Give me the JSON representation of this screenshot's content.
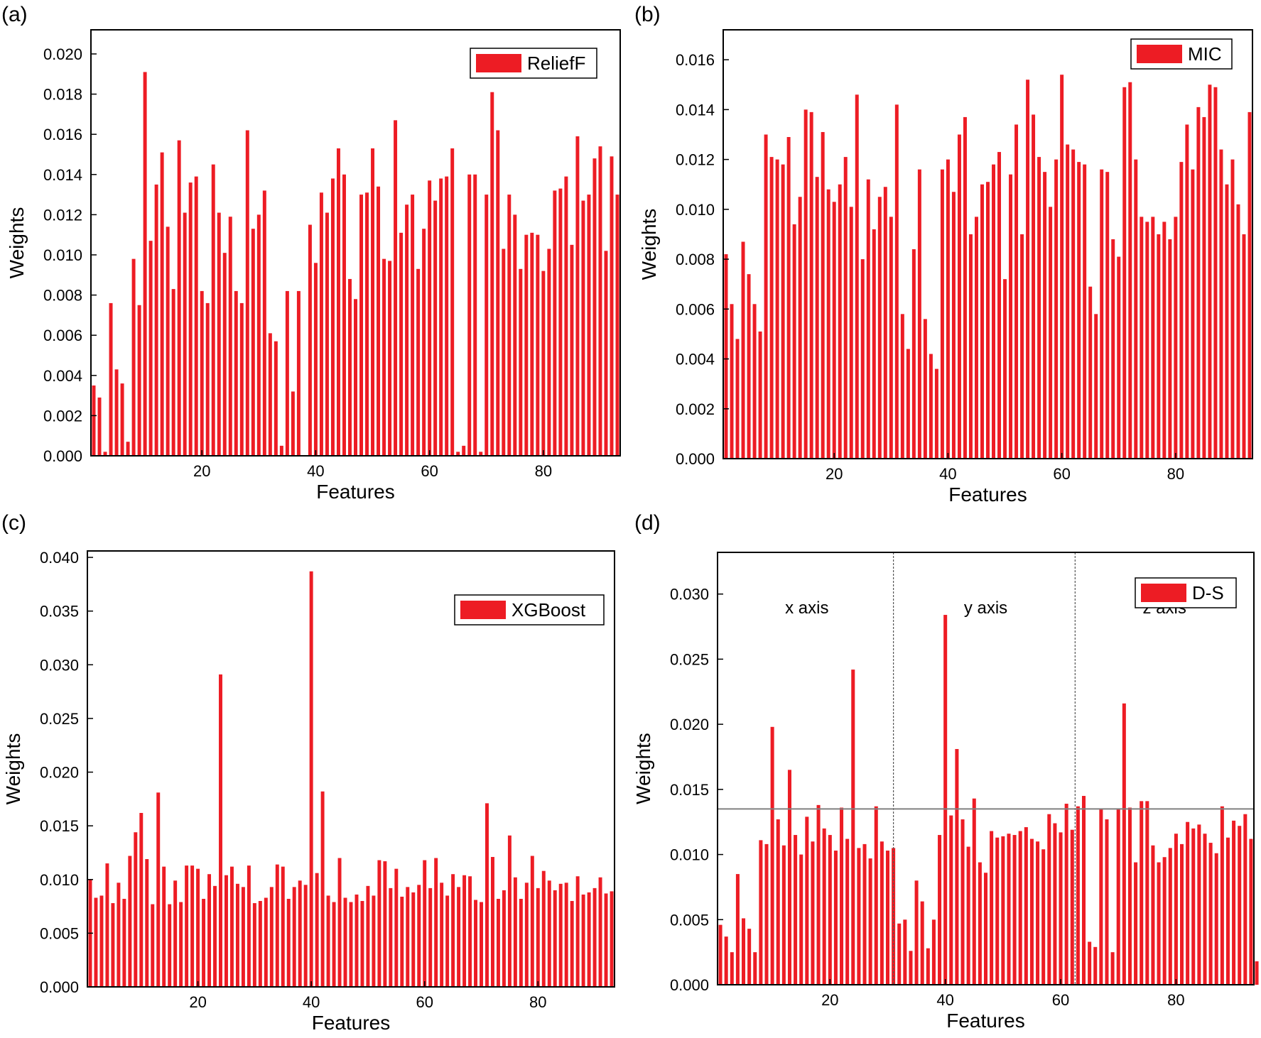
{
  "figure": {
    "bar_color": "#ED1C24",
    "frame_color": "#000000",
    "threshold_color": "#808080"
  },
  "chart_data": [
    {
      "panel_label": "(a)",
      "type": "bar",
      "legend": "ReliefF",
      "legend_position": "top-right",
      "xlabel": "Features",
      "ylabel": "Weights",
      "xlim": [
        0.5,
        93.5
      ],
      "ylim": [
        0,
        0.0212
      ],
      "xticks": [
        20,
        40,
        60,
        80
      ],
      "xtick_labels": [
        "20",
        "40",
        "60",
        "80"
      ],
      "yticks": [
        0,
        0.002,
        0.004,
        0.006,
        0.008,
        0.01,
        0.012,
        0.014,
        0.016,
        0.018,
        0.02
      ],
      "ytick_labels": [
        "0.000",
        "0.002",
        "0.004",
        "0.006",
        "0.008",
        "0.010",
        "0.012",
        "0.014",
        "0.016",
        "0.018",
        "0.020"
      ],
      "x_start": 1,
      "values": [
        0.0035,
        0.0029,
        0.0002,
        0.0076,
        0.0043,
        0.0036,
        0.0007,
        0.0098,
        0.0075,
        0.0191,
        0.0107,
        0.0135,
        0.0151,
        0.0114,
        0.0083,
        0.0157,
        0.0121,
        0.0136,
        0.0139,
        0.0082,
        0.0076,
        0.0145,
        0.0121,
        0.0101,
        0.0119,
        0.0082,
        0.0076,
        0.0162,
        0.0113,
        0.012,
        0.0132,
        0.0061,
        0.0057,
        0.0005,
        0.0082,
        0.0032,
        0.0082,
        0.0,
        0.0115,
        0.0096,
        0.0131,
        0.0121,
        0.0138,
        0.0153,
        0.014,
        0.0088,
        0.0078,
        0.013,
        0.0131,
        0.0153,
        0.0134,
        0.0098,
        0.0097,
        0.0167,
        0.0111,
        0.0125,
        0.013,
        0.0093,
        0.0113,
        0.0137,
        0.0127,
        0.0138,
        0.0139,
        0.0153,
        0.0002,
        0.0005,
        0.014,
        0.014,
        0.0002,
        0.013,
        0.0181,
        0.0162,
        0.0103,
        0.013,
        0.012,
        0.0093,
        0.011,
        0.0111,
        0.011,
        0.0092,
        0.0103,
        0.0132,
        0.0133,
        0.0139,
        0.0105,
        0.0159,
        0.0127,
        0.013,
        0.0148,
        0.0154,
        0.0102,
        0.0149,
        0.013
      ]
    },
    {
      "panel_label": "(b)",
      "type": "bar",
      "legend": "MIC",
      "legend_position": "top-right",
      "xlabel": "Features",
      "ylabel": "Weights",
      "xlim": [
        0.5,
        93.5
      ],
      "ylim": [
        0,
        0.0172
      ],
      "xticks": [
        20,
        40,
        60,
        80
      ],
      "xtick_labels": [
        "20",
        "40",
        "60",
        "80"
      ],
      "yticks": [
        0,
        0.002,
        0.004,
        0.006,
        0.008,
        0.01,
        0.012,
        0.014,
        0.016
      ],
      "ytick_labels": [
        "0.000",
        "0.002",
        "0.004",
        "0.006",
        "0.008",
        "0.010",
        "0.012",
        "0.014",
        "0.016"
      ],
      "x_start": 1,
      "values": [
        0.0082,
        0.0062,
        0.0048,
        0.0087,
        0.0074,
        0.0062,
        0.0051,
        0.013,
        0.0121,
        0.012,
        0.0118,
        0.0129,
        0.0094,
        0.0105,
        0.014,
        0.0139,
        0.0113,
        0.0131,
        0.0108,
        0.0103,
        0.011,
        0.0121,
        0.0101,
        0.0146,
        0.008,
        0.0112,
        0.0092,
        0.0105,
        0.0109,
        0.0097,
        0.0142,
        0.0058,
        0.0044,
        0.0084,
        0.0116,
        0.0056,
        0.0042,
        0.0036,
        0.0116,
        0.012,
        0.0107,
        0.013,
        0.0137,
        0.009,
        0.0097,
        0.011,
        0.0111,
        0.0118,
        0.0123,
        0.0072,
        0.0114,
        0.0134,
        0.009,
        0.0152,
        0.0138,
        0.0121,
        0.0115,
        0.0101,
        0.012,
        0.0154,
        0.0126,
        0.0124,
        0.0119,
        0.0118,
        0.0069,
        0.0058,
        0.0116,
        0.0115,
        0.0088,
        0.0081,
        0.0149,
        0.0151,
        0.012,
        0.0097,
        0.0095,
        0.0097,
        0.009,
        0.0095,
        0.0088,
        0.0097,
        0.0119,
        0.0134,
        0.0116,
        0.0141,
        0.0137,
        0.015,
        0.0149,
        0.0124,
        0.011,
        0.012,
        0.0102,
        0.009,
        0.0139
      ]
    },
    {
      "panel_label": "(c)",
      "type": "bar",
      "legend": "XGBoost",
      "legend_position": "top-right",
      "xlabel": "Features",
      "ylabel": "Weights",
      "xlim": [
        0.5,
        93.5
      ],
      "ylim": [
        0,
        0.0406
      ],
      "xticks": [
        20,
        40,
        60,
        80
      ],
      "xtick_labels": [
        "20",
        "40",
        "60",
        "80"
      ],
      "yticks": [
        0,
        0.005,
        0.01,
        0.015,
        0.02,
        0.025,
        0.03,
        0.035,
        0.04
      ],
      "ytick_labels": [
        "0.000",
        "0.005",
        "0.010",
        "0.015",
        "0.020",
        "0.025",
        "0.030",
        "0.035",
        "0.040"
      ],
      "x_start": 1,
      "values": [
        0.01,
        0.0083,
        0.0085,
        0.0115,
        0.0078,
        0.0097,
        0.0082,
        0.0122,
        0.0144,
        0.0162,
        0.0119,
        0.0077,
        0.0181,
        0.0112,
        0.0077,
        0.0099,
        0.0079,
        0.0113,
        0.0113,
        0.011,
        0.0082,
        0.0105,
        0.0094,
        0.0291,
        0.0104,
        0.0112,
        0.0096,
        0.0093,
        0.0113,
        0.0078,
        0.008,
        0.0083,
        0.0093,
        0.0114,
        0.0112,
        0.0082,
        0.0093,
        0.0099,
        0.0095,
        0.0387,
        0.0106,
        0.0182,
        0.0085,
        0.0079,
        0.012,
        0.0083,
        0.0079,
        0.0086,
        0.008,
        0.0094,
        0.0085,
        0.0118,
        0.0117,
        0.0092,
        0.011,
        0.0084,
        0.0093,
        0.0088,
        0.0095,
        0.0118,
        0.0092,
        0.012,
        0.0097,
        0.0085,
        0.0105,
        0.0093,
        0.0104,
        0.0103,
        0.0081,
        0.0079,
        0.0171,
        0.0121,
        0.0082,
        0.009,
        0.0141,
        0.0102,
        0.0082,
        0.0097,
        0.0122,
        0.0092,
        0.0108,
        0.0099,
        0.009,
        0.0096,
        0.0097,
        0.008,
        0.0103,
        0.0086,
        0.0088,
        0.0092,
        0.0102,
        0.0087,
        0.0089
      ]
    },
    {
      "panel_label": "(d)",
      "type": "bar",
      "legend": "D-S",
      "legend_position": "top-right",
      "xlabel": "Features",
      "ylabel": "Weights",
      "xlim": [
        0.5,
        93.5
      ],
      "ylim": [
        0,
        0.0332
      ],
      "xticks": [
        20,
        40,
        60,
        80
      ],
      "xtick_labels": [
        "20",
        "40",
        "60",
        "80"
      ],
      "yticks": [
        0,
        0.005,
        0.01,
        0.015,
        0.02,
        0.025,
        0.03
      ],
      "ytick_labels": [
        "0.000",
        "0.005",
        "0.010",
        "0.015",
        "0.020",
        "0.025",
        "0.030"
      ],
      "x_start": 1,
      "threshold": 0.0135,
      "dividers": [
        31,
        62.5
      ],
      "region_labels": [
        {
          "text": "x axis",
          "x": 16
        },
        {
          "text": "y axis",
          "x": 47
        },
        {
          "text": "z axis",
          "x": 78
        }
      ],
      "region_label_y": 0.0285,
      "values": [
        0.0046,
        0.0037,
        0.0025,
        0.0085,
        0.0051,
        0.0043,
        0.0025,
        0.0111,
        0.0108,
        0.0198,
        0.0127,
        0.0107,
        0.0165,
        0.0115,
        0.01,
        0.0129,
        0.011,
        0.0138,
        0.012,
        0.0115,
        0.0103,
        0.0136,
        0.0112,
        0.0242,
        0.0105,
        0.0108,
        0.0097,
        0.0137,
        0.011,
        0.0103,
        0.0105,
        0.0047,
        0.005,
        0.0026,
        0.008,
        0.0064,
        0.0028,
        0.005,
        0.0115,
        0.0284,
        0.013,
        0.0181,
        0.0127,
        0.0106,
        0.0143,
        0.0094,
        0.0086,
        0.0118,
        0.0113,
        0.0114,
        0.0116,
        0.0115,
        0.0118,
        0.0121,
        0.0112,
        0.011,
        0.0104,
        0.0131,
        0.0124,
        0.0117,
        0.0139,
        0.0119,
        0.0137,
        0.0145,
        0.0033,
        0.0029,
        0.0135,
        0.0127,
        0.0025,
        0.0135,
        0.0216,
        0.0136,
        0.0094,
        0.0141,
        0.0141,
        0.0107,
        0.0094,
        0.0098,
        0.0105,
        0.0116,
        0.0108,
        0.0125,
        0.012,
        0.0123,
        0.0116,
        0.0109,
        0.0101,
        0.0137,
        0.0113,
        0.0126,
        0.0122,
        0.0131,
        0.0112,
        0.0018
      ]
    }
  ]
}
